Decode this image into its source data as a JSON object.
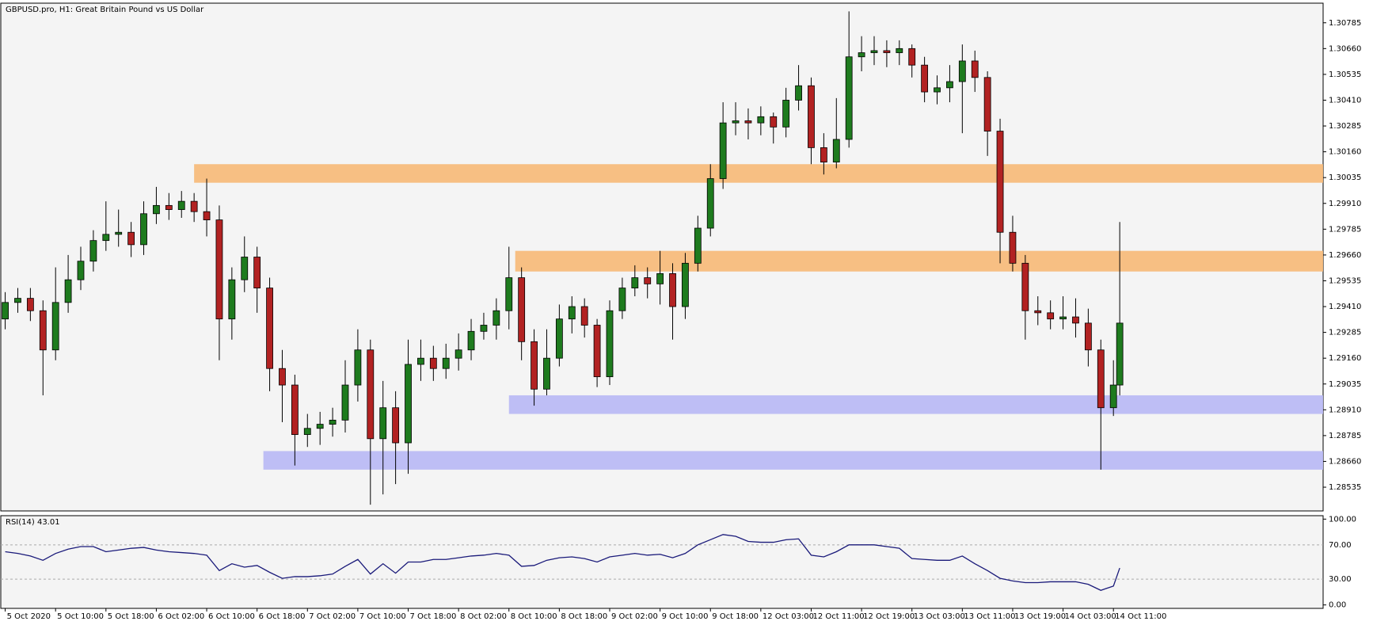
{
  "chart_data": {
    "type": "candlestick",
    "title": "GBPUSD.pro, H1:  Great Britain Pound vs US Dollar",
    "up_color": "#1e7b1e",
    "down_color": "#b22222",
    "xlim": [
      -0.7,
      209.3
    ],
    "ylim": [
      1.2842,
      1.3088
    ],
    "xticks": [
      {
        "value": 0,
        "label": "5 Oct 2020"
      },
      {
        "value": 8,
        "label": "5 Oct 10:00"
      },
      {
        "value": 16,
        "label": "5 Oct 18:00"
      },
      {
        "value": 24,
        "label": "6 Oct 02:00"
      },
      {
        "value": 32,
        "label": "6 Oct 10:00"
      },
      {
        "value": 40,
        "label": "6 Oct 18:00"
      },
      {
        "value": 48,
        "label": "7 Oct 02:00"
      },
      {
        "value": 56,
        "label": "7 Oct 10:00"
      },
      {
        "value": 64,
        "label": "7 Oct 18:00"
      },
      {
        "value": 72,
        "label": "8 Oct 02:00"
      },
      {
        "value": 80,
        "label": "8 Oct 10:00"
      },
      {
        "value": 88,
        "label": "8 Oct 18:00"
      },
      {
        "value": 96,
        "label": "9 Oct 02:00"
      },
      {
        "value": 104,
        "label": "9 Oct 10:00"
      },
      {
        "value": 112,
        "label": "9 Oct 18:00"
      },
      {
        "value": 120,
        "label": "12 Oct 03:00"
      },
      {
        "value": 128,
        "label": "12 Oct 11:00"
      },
      {
        "value": 136,
        "label": "12 Oct 19:00"
      },
      {
        "value": 144,
        "label": "13 Oct 03:00"
      },
      {
        "value": 152,
        "label": "13 Oct 11:00"
      },
      {
        "value": 160,
        "label": "13 Oct 19:00"
      },
      {
        "value": 168,
        "label": "14 Oct 03:00"
      },
      {
        "value": 176,
        "label": "14 Oct 11:00"
      }
    ],
    "yticks": [
      1.30785,
      {
        "value": 1.3066,
        "label": "1.30660"
      },
      1.30535,
      {
        "value": 1.3041,
        "label": "1.30410"
      },
      1.30285,
      {
        "value": 1.3016,
        "label": "1.30160"
      },
      1.30035,
      {
        "value": 1.2991,
        "label": "1.29910"
      },
      1.29785,
      {
        "value": 1.2966,
        "label": "1.29660"
      },
      1.29535,
      {
        "value": 1.2941,
        "label": "1.29410"
      },
      1.29285,
      {
        "value": 1.2916,
        "label": "1.29160"
      },
      1.29035,
      {
        "value": 1.2891,
        "label": "1.28910"
      },
      1.28785,
      {
        "value": 1.2866,
        "label": "1.28660"
      },
      1.28535
    ],
    "candles": [
      [
        0,
        1.2935,
        1.2948,
        1.293,
        1.2943
      ],
      [
        2,
        1.2943,
        1.295,
        1.2938,
        1.2945
      ],
      [
        4,
        1.2945,
        1.295,
        1.2934,
        1.2939
      ],
      [
        6,
        1.2939,
        1.2944,
        1.2898,
        1.292
      ],
      [
        8,
        1.292,
        1.296,
        1.2915,
        1.2943
      ],
      [
        10,
        1.2943,
        1.2966,
        1.2938,
        1.2954
      ],
      [
        12,
        1.2954,
        1.297,
        1.2949,
        1.2963
      ],
      [
        14,
        1.2963,
        1.2978,
        1.2958,
        1.2973
      ],
      [
        16,
        1.2973,
        1.2992,
        1.2968,
        1.2976
      ],
      [
        18,
        1.2976,
        1.2988,
        1.297,
        1.2977
      ],
      [
        20,
        1.2977,
        1.2982,
        1.2965,
        1.2971
      ],
      [
        22,
        1.2971,
        1.2992,
        1.2966,
        1.2986
      ],
      [
        24,
        1.2986,
        1.2999,
        1.2981,
        1.299
      ],
      [
        26,
        1.299,
        1.2996,
        1.2983,
        1.2988
      ],
      [
        28,
        1.2988,
        1.2997,
        1.2984,
        1.2992
      ],
      [
        30,
        1.2992,
        1.2996,
        1.2982,
        1.2987
      ],
      [
        32,
        1.2987,
        1.3003,
        1.2975,
        1.2983
      ],
      [
        34,
        1.2983,
        1.299,
        1.2915,
        1.2935
      ],
      [
        36,
        1.2935,
        1.296,
        1.2925,
        1.2954
      ],
      [
        38,
        1.2954,
        1.2975,
        1.2948,
        1.2965
      ],
      [
        40,
        1.2965,
        1.297,
        1.2938,
        1.295
      ],
      [
        42,
        1.295,
        1.2955,
        1.29,
        1.2911
      ],
      [
        44,
        1.2911,
        1.292,
        1.2885,
        1.2903
      ],
      [
        46,
        1.2903,
        1.2908,
        1.2864,
        1.2879
      ],
      [
        48,
        1.2879,
        1.2889,
        1.2873,
        1.2882
      ],
      [
        50,
        1.2882,
        1.289,
        1.2874,
        1.2884
      ],
      [
        52,
        1.2884,
        1.2892,
        1.2878,
        1.2886
      ],
      [
        54,
        1.2886,
        1.2915,
        1.288,
        1.2903
      ],
      [
        56,
        1.2903,
        1.293,
        1.2895,
        1.292
      ],
      [
        58,
        1.292,
        1.2925,
        1.2845,
        1.2877
      ],
      [
        60,
        1.2877,
        1.2905,
        1.285,
        1.2892
      ],
      [
        62,
        1.2892,
        1.29,
        1.2855,
        1.2875
      ],
      [
        64,
        1.2875,
        1.2925,
        1.286,
        1.2913
      ],
      [
        66,
        1.2913,
        1.2925,
        1.2905,
        1.2916
      ],
      [
        68,
        1.2916,
        1.2922,
        1.2905,
        1.2911
      ],
      [
        70,
        1.2911,
        1.2923,
        1.2906,
        1.2916
      ],
      [
        72,
        1.2916,
        1.2928,
        1.291,
        1.292
      ],
      [
        74,
        1.292,
        1.2935,
        1.2915,
        1.2929
      ],
      [
        76,
        1.2929,
        1.2938,
        1.2925,
        1.2932
      ],
      [
        78,
        1.2932,
        1.2945,
        1.2925,
        1.2939
      ],
      [
        80,
        1.2939,
        1.297,
        1.293,
        1.2955
      ],
      [
        82,
        1.2955,
        1.296,
        1.2915,
        1.2924
      ],
      [
        84,
        1.2924,
        1.293,
        1.2893,
        1.2901
      ],
      [
        86,
        1.2901,
        1.293,
        1.2898,
        1.2916
      ],
      [
        88,
        1.2916,
        1.2942,
        1.2912,
        1.2935
      ],
      [
        90,
        1.2935,
        1.2946,
        1.2928,
        1.2941
      ],
      [
        92,
        1.2941,
        1.2945,
        1.2926,
        1.2932
      ],
      [
        94,
        1.2932,
        1.2935,
        1.2902,
        1.2907
      ],
      [
        96,
        1.2907,
        1.2944,
        1.2903,
        1.2939
      ],
      [
        98,
        1.2939,
        1.2955,
        1.2935,
        1.295
      ],
      [
        100,
        1.295,
        1.2961,
        1.2946,
        1.2955
      ],
      [
        102,
        1.2955,
        1.296,
        1.2945,
        1.2952
      ],
      [
        104,
        1.2952,
        1.2968,
        1.2942,
        1.2957
      ],
      [
        106,
        1.2957,
        1.2962,
        1.2925,
        1.2941
      ],
      [
        108,
        1.2941,
        1.2967,
        1.2935,
        1.2962
      ],
      [
        110,
        1.2962,
        1.2985,
        1.2958,
        1.2979
      ],
      [
        112,
        1.2979,
        1.301,
        1.2975,
        1.3003
      ],
      [
        114,
        1.3003,
        1.304,
        1.2998,
        1.303
      ],
      [
        116,
        1.303,
        1.304,
        1.3024,
        1.3031
      ],
      [
        118,
        1.3031,
        1.3037,
        1.3022,
        1.303
      ],
      [
        120,
        1.303,
        1.3038,
        1.3024,
        1.3033
      ],
      [
        122,
        1.3033,
        1.3035,
        1.302,
        1.3028
      ],
      [
        124,
        1.3028,
        1.3047,
        1.3023,
        1.3041
      ],
      [
        126,
        1.3041,
        1.3058,
        1.3036,
        1.3048
      ],
      [
        128,
        1.3048,
        1.3052,
        1.301,
        1.3018
      ],
      [
        130,
        1.3018,
        1.3025,
        1.3005,
        1.3011
      ],
      [
        132,
        1.3011,
        1.3042,
        1.3008,
        1.3022
      ],
      [
        134,
        1.3022,
        1.3084,
        1.3018,
        1.3062
      ],
      [
        136,
        1.3062,
        1.3072,
        1.3055,
        1.3064
      ],
      [
        138,
        1.3064,
        1.3072,
        1.3058,
        1.3065
      ],
      [
        140,
        1.3065,
        1.307,
        1.3057,
        1.3064
      ],
      [
        142,
        1.3064,
        1.307,
        1.3058,
        1.3066
      ],
      [
        144,
        1.3066,
        1.3068,
        1.3052,
        1.3058
      ],
      [
        146,
        1.3058,
        1.3062,
        1.304,
        1.3045
      ],
      [
        148,
        1.3045,
        1.3053,
        1.3039,
        1.3047
      ],
      [
        150,
        1.3047,
        1.3058,
        1.304,
        1.305
      ],
      [
        152,
        1.305,
        1.3068,
        1.3025,
        1.306
      ],
      [
        154,
        1.306,
        1.3065,
        1.3045,
        1.3052
      ],
      [
        156,
        1.3052,
        1.3055,
        1.3014,
        1.3026
      ],
      [
        158,
        1.3026,
        1.3032,
        1.2962,
        1.2977
      ],
      [
        160,
        1.2977,
        1.2985,
        1.2958,
        1.2962
      ],
      [
        162,
        1.2962,
        1.2966,
        1.2925,
        1.2939
      ],
      [
        164,
        1.2939,
        1.2946,
        1.2932,
        1.2938
      ],
      [
        166,
        1.2938,
        1.2944,
        1.293,
        1.2935
      ],
      [
        168,
        1.2935,
        1.2946,
        1.293,
        1.2936
      ],
      [
        170,
        1.2936,
        1.2945,
        1.2926,
        1.2933
      ],
      [
        172,
        1.2933,
        1.294,
        1.2912,
        1.292
      ],
      [
        174,
        1.292,
        1.2925,
        1.2862,
        1.2892
      ],
      [
        176,
        1.2892,
        1.2915,
        1.2888,
        1.2903
      ],
      [
        177,
        1.2903,
        1.2982,
        1.2898,
        1.2933
      ]
    ],
    "zones": [
      {
        "from_x": 30,
        "y1": 1.3001,
        "y2": 1.301,
        "color": "#f7b977"
      },
      {
        "from_x": 81,
        "y1": 1.2958,
        "y2": 1.2968,
        "color": "#f7b977"
      },
      {
        "from_x": 80,
        "y1": 1.2889,
        "y2": 1.2898,
        "color": "#b8b8f5"
      },
      {
        "from_x": 41,
        "y1": 1.2862,
        "y2": 1.2871,
        "color": "#b8b8f5"
      }
    ],
    "rsi": {
      "title": "RSI(14) 43.01",
      "color": "#1a1a7a",
      "ylim": [
        -4,
        104
      ],
      "yticks": [
        {
          "value": 100,
          "label": "100.00"
        },
        {
          "value": 70,
          "label": "70.00"
        },
        {
          "value": 30,
          "label": "30.00"
        },
        {
          "value": 0,
          "label": "0.00"
        }
      ],
      "values": [
        62,
        60,
        57,
        52,
        60,
        65,
        68,
        68,
        62,
        64,
        66,
        67,
        64,
        62,
        61,
        60,
        58,
        40,
        48,
        44,
        46,
        38,
        31,
        33,
        33,
        34,
        36,
        45,
        53,
        36,
        48,
        37,
        50,
        50,
        53,
        53,
        55,
        57,
        58,
        60,
        58,
        45,
        46,
        52,
        55,
        56,
        54,
        50,
        56,
        58,
        60,
        58,
        59,
        55,
        60,
        70,
        76,
        82,
        80,
        74,
        73,
        73,
        76,
        77,
        58,
        56,
        62,
        70,
        70,
        70,
        68,
        66,
        54,
        53,
        52,
        52,
        57,
        48,
        40,
        31,
        28,
        26,
        26,
        27,
        27,
        27,
        24,
        17,
        22,
        43.01
      ]
    }
  }
}
